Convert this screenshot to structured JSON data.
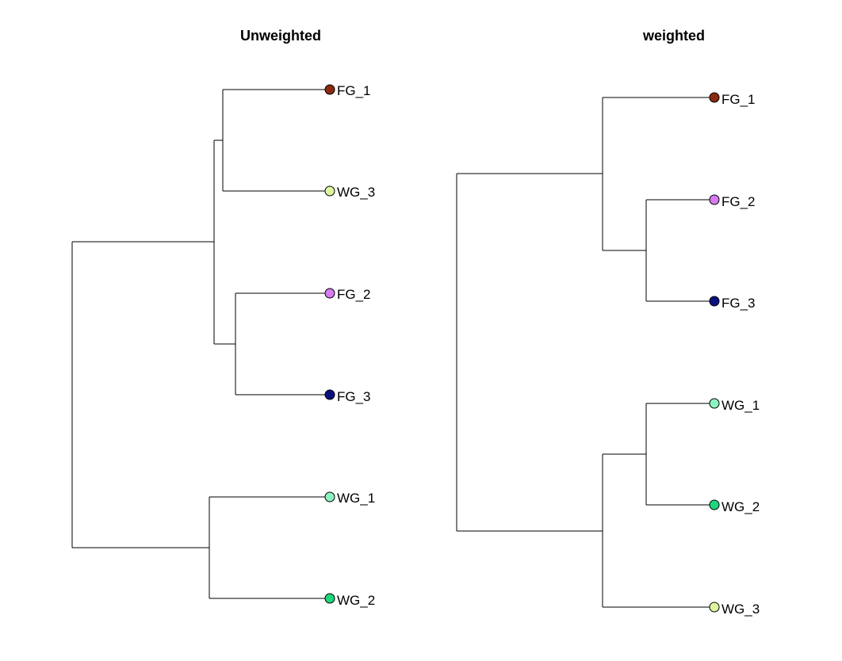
{
  "trees": [
    {
      "title": "Unweighted",
      "tips": [
        {
          "label": "FG_1",
          "color": "#8B2A10"
        },
        {
          "label": "WG_3",
          "color": "#DDF5A0"
        },
        {
          "label": "FG_2",
          "color": "#D77BF0"
        },
        {
          "label": "FG_3",
          "color": "#0A1080"
        },
        {
          "label": "WG_1",
          "color": "#8CF2C0"
        },
        {
          "label": "WG_2",
          "color": "#1FD67E"
        }
      ]
    },
    {
      "title": "weighted",
      "tips": [
        {
          "label": "FG_1",
          "color": "#8B2A10"
        },
        {
          "label": "FG_2",
          "color": "#D77BF0"
        },
        {
          "label": "FG_3",
          "color": "#0A1080"
        },
        {
          "label": "WG_1",
          "color": "#8CF2C0"
        },
        {
          "label": "WG_2",
          "color": "#1FD67E"
        },
        {
          "label": "WG_3",
          "color": "#DDF5A0"
        }
      ]
    }
  ]
}
